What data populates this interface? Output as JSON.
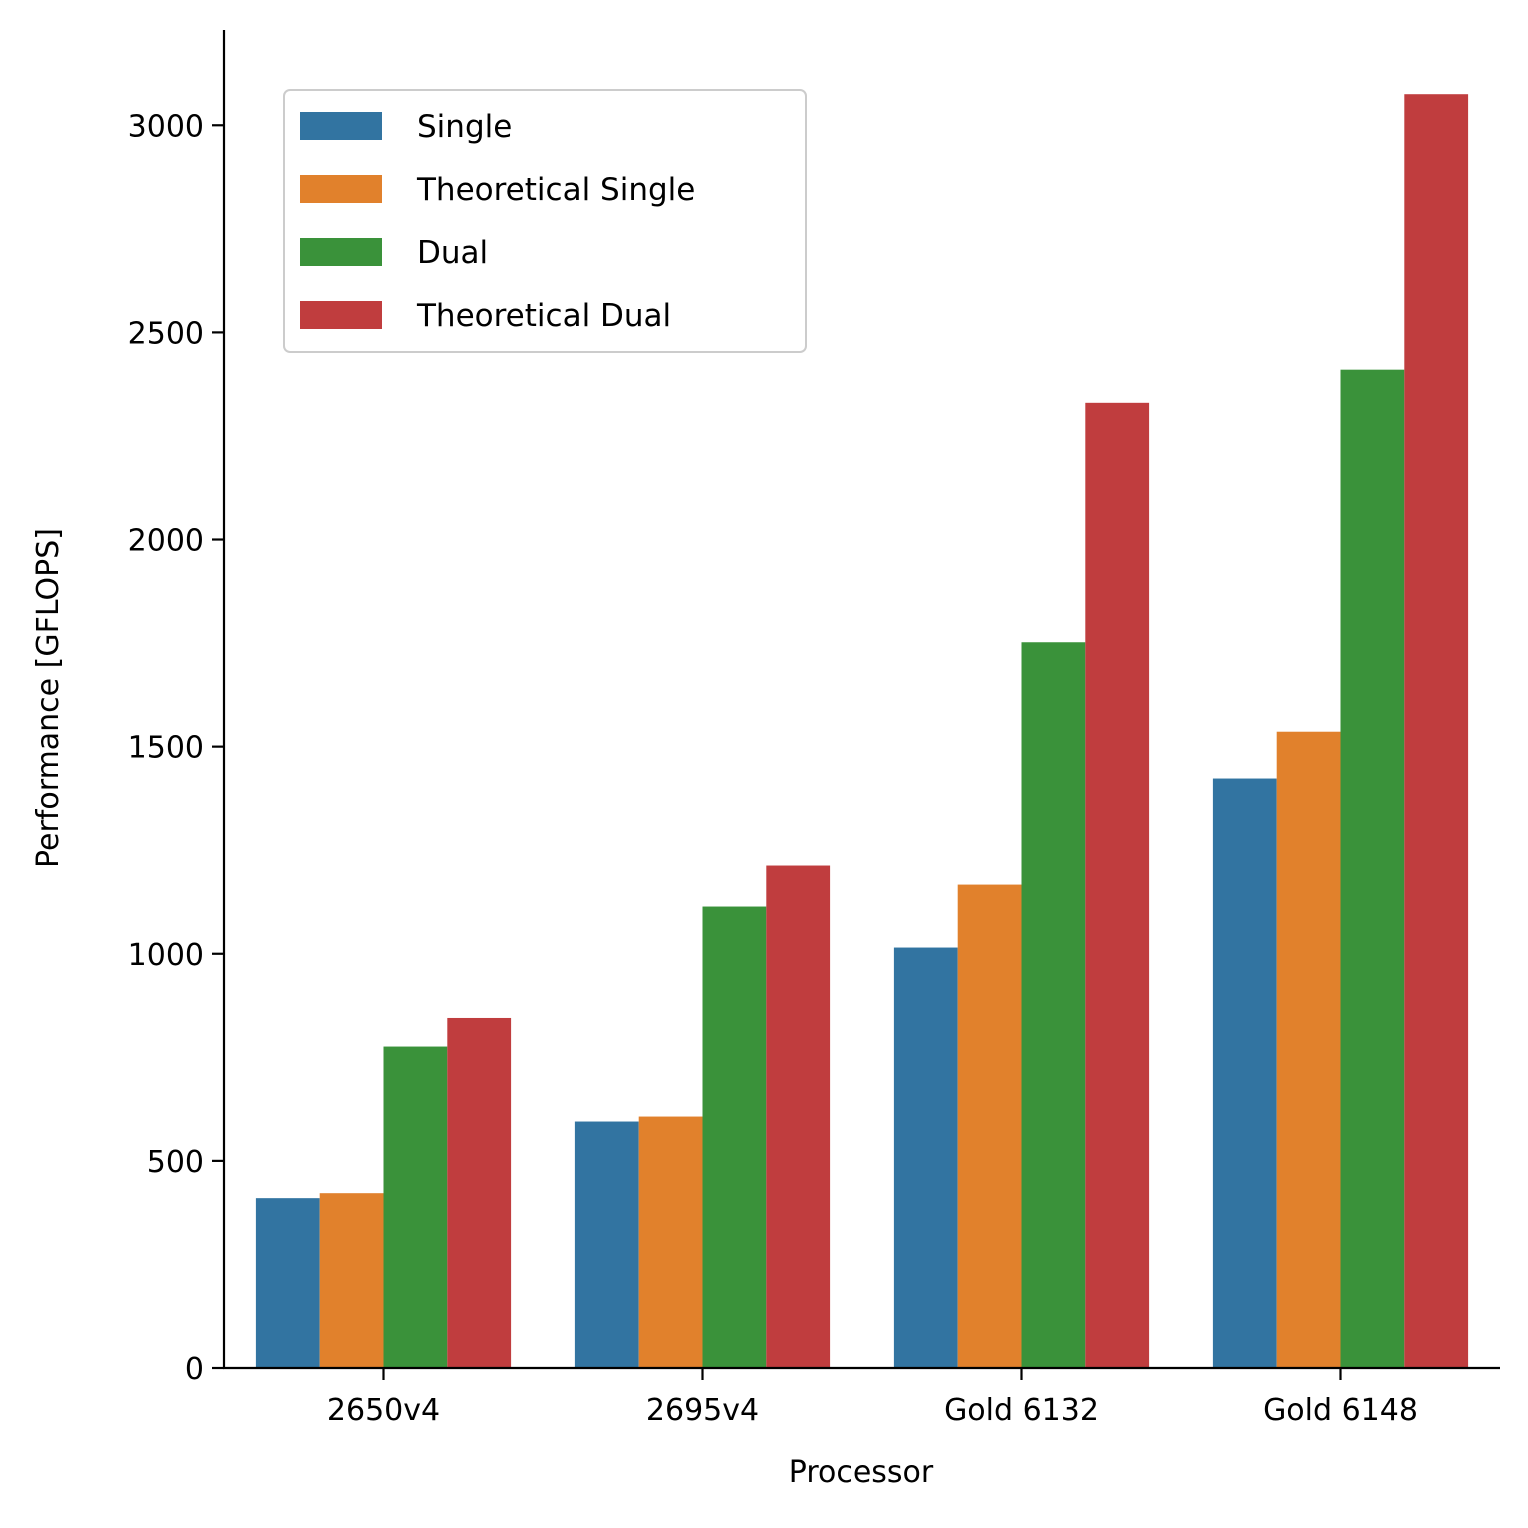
{
  "chart_data": {
    "type": "bar",
    "title": "",
    "xlabel": "Processor",
    "ylabel": "Performance [GFLOPS]",
    "categories": [
      "2650v4",
      "2695v4",
      "Gold 6132",
      "Gold 6148"
    ],
    "series": [
      {
        "name": "Single",
        "color": "#3274a1",
        "values": [
          410,
          595,
          1015,
          1423
        ]
      },
      {
        "name": "Theoretical Single",
        "color": "#e1812c",
        "values": [
          422,
          607,
          1167,
          1536
        ]
      },
      {
        "name": "Dual",
        "color": "#3a923a",
        "values": [
          776,
          1114,
          1752,
          2410
        ]
      },
      {
        "name": "Theoretical Dual",
        "color": "#c03d3e",
        "values": [
          845,
          1213,
          2330,
          3075
        ]
      }
    ],
    "ylim": [
      0,
      3230
    ],
    "yticks": [
      0,
      500,
      1000,
      1500,
      2000,
      2500,
      3000
    ],
    "grid": false,
    "legend_position": "top-left"
  }
}
